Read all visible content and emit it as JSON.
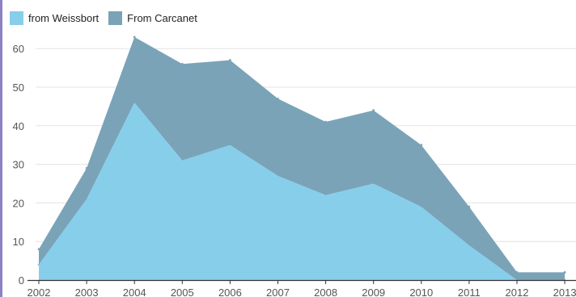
{
  "chart_data": {
    "type": "area",
    "stacked": true,
    "x": [
      "2002",
      "2003",
      "2004",
      "2005",
      "2006",
      "2007",
      "2008",
      "2009",
      "2010",
      "2011",
      "2012",
      "2013"
    ],
    "series": [
      {
        "name": "from Weissbort",
        "color": "#87ceeb",
        "values": [
          4,
          21,
          46,
          31,
          35,
          27,
          22,
          25,
          19,
          9,
          0,
          0
        ]
      },
      {
        "name": "From Carcanet",
        "color": "#7aa3b8",
        "values": [
          4,
          8,
          17,
          25,
          22,
          20,
          19,
          19,
          16,
          10,
          2,
          2
        ]
      }
    ],
    "yticks": [
      "0",
      "10",
      "20",
      "30",
      "40",
      "50",
      "60"
    ],
    "ylim": [
      0,
      65
    ],
    "grid": true,
    "legend_position": "top-left"
  }
}
